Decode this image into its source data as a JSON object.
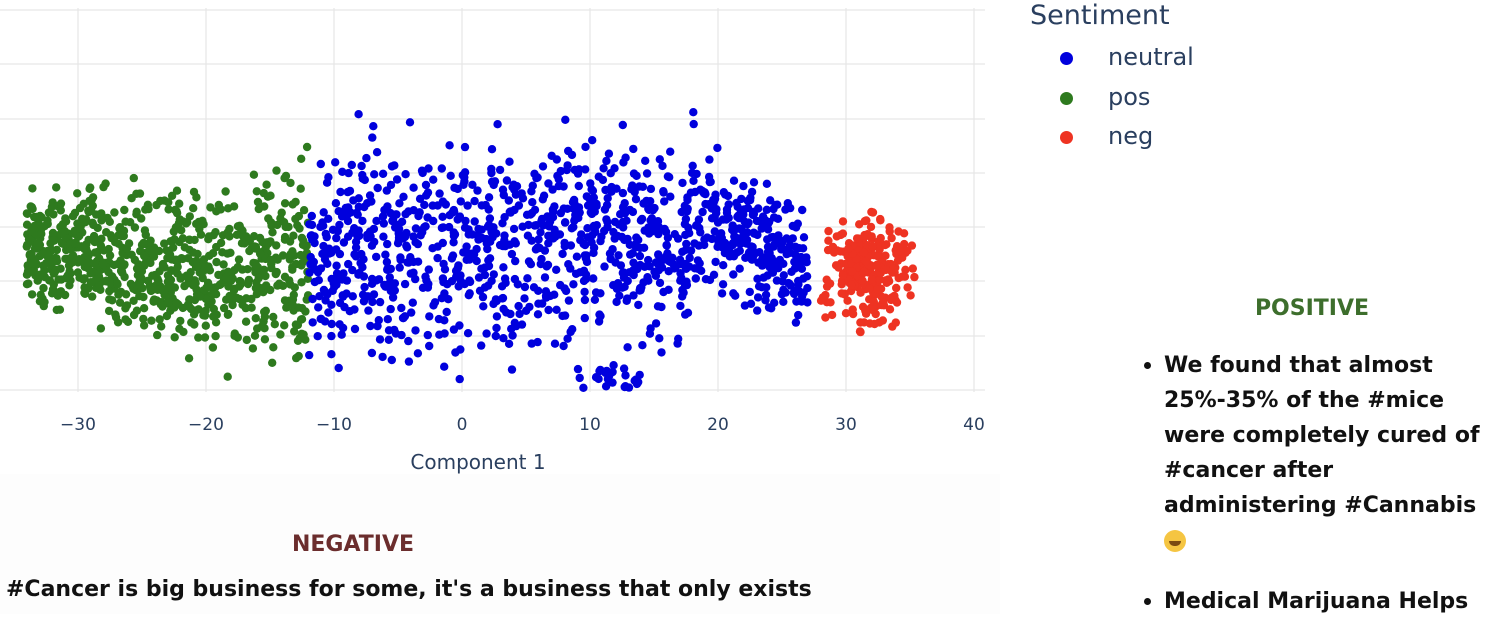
{
  "chart_data": {
    "type": "scatter",
    "xlabel": "Component 1",
    "ylabel": "",
    "xlim": [
      -36.5,
      40
    ],
    "ylim": [
      -7.5,
      7.5
    ],
    "x_ticks": [
      -30,
      -20,
      -10,
      0,
      10,
      20,
      30,
      40
    ],
    "x_tick_labels": [
      "−30",
      "−20",
      "−10",
      "0",
      "10",
      "20",
      "30",
      "40"
    ],
    "grid": true,
    "legend": {
      "title": "Sentiment",
      "placement": "top-right-outside"
    },
    "series": [
      {
        "name": "neutral",
        "color": "#0000dd",
        "clusters": [
          {
            "x_range": [
              -12,
              27
            ],
            "y_range": [
              -5.5,
              6.5
            ],
            "count": 1150
          },
          {
            "x_range": [
              -8,
              -3
            ],
            "y_range": [
              -7.2,
              -5
            ],
            "count": 12
          },
          {
            "x_range": [
              9,
              14
            ],
            "y_range": [
              -5.6,
              -4
            ],
            "count": 40
          }
        ]
      },
      {
        "name": "pos",
        "color": "#2e7a1e",
        "clusters": [
          {
            "x_range": [
              -34,
              -12
            ],
            "y_range": [
              -5.5,
              4.5
            ],
            "count": 820
          }
        ]
      },
      {
        "name": "neg",
        "color": "#ee3322",
        "clusters": [
          {
            "x_range": [
              27,
              36
            ],
            "y_range": [
              -3.5,
              2.5
            ],
            "count": 260
          }
        ]
      }
    ]
  },
  "negative": {
    "heading": "NEGATIVE",
    "text": "#Cancer is big business for some, it's a business that only exists"
  },
  "positive": {
    "heading": "POSITIVE",
    "items": [
      "We found that almost 25%-35% of the #mice were completely cured of #cancer after administering #Cannabis",
      "Medical Marijuana Helps"
    ]
  }
}
